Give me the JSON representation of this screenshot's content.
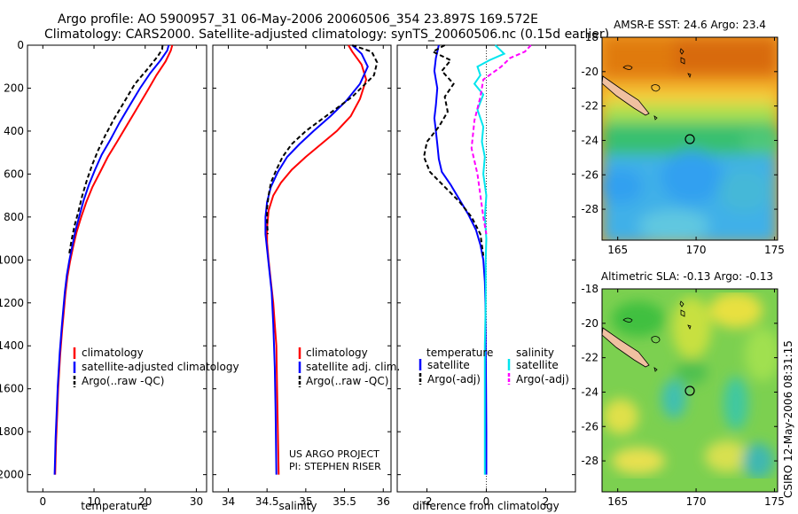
{
  "header": {
    "line1": "Argo profile: AO 5900957_31 06-May-2006 20060506_354 23.897S 169.572E",
    "line2": "Climatology: CARS2000. Satellite-adjusted climatology: synTS_20060506.nc (0.15d earlier)"
  },
  "footer": {
    "project": "US ARGO PROJECT",
    "pi": "PI: STEPHEN RISER",
    "stamp": "CSIRO 12-May-2006 08:31:15"
  },
  "colors": {
    "climatology": "#ff0000",
    "satellite": "#0000ff",
    "argo": "#000000",
    "sal_satellite": "#00e5ee",
    "sal_argo": "#ff00ff"
  },
  "chart_data": [
    {
      "type": "line",
      "name": "temperature-profile",
      "xlabel": "temperature",
      "ylabel": "",
      "xlim": [
        -3,
        32
      ],
      "ylim": [
        0,
        2080
      ],
      "y_reversed": true,
      "xticks": [
        0,
        10,
        20,
        30
      ],
      "yticks": [
        0,
        200,
        400,
        600,
        800,
        1000,
        1200,
        1400,
        1600,
        1800,
        2000
      ],
      "legend": [
        "climatology",
        "satellite-adjusted climatology",
        "Argo(..raw -QC)"
      ],
      "series": [
        {
          "name": "climatology",
          "color": "#ff0000",
          "dash": "",
          "x": [
            25.3,
            25.0,
            24.0,
            22.2,
            20.5,
            18.5,
            16.5,
            14.5,
            12.7,
            11.2,
            9.7,
            8.5,
            7.5,
            6.6,
            5.9,
            5.3,
            4.8,
            4.4,
            4.1,
            3.8,
            3.4,
            3.0,
            2.8,
            2.6,
            2.5,
            2.4
          ],
          "y": [
            0,
            25,
            75,
            140,
            210,
            290,
            370,
            450,
            520,
            590,
            660,
            730,
            800,
            870,
            940,
            1010,
            1080,
            1160,
            1240,
            1320,
            1440,
            1600,
            1720,
            1840,
            1920,
            2000
          ]
        },
        {
          "name": "satellite-adjusted climatology",
          "color": "#0000ff",
          "dash": "",
          "x": [
            24.6,
            24.3,
            23.0,
            21.0,
            19.0,
            17.0,
            15.0,
            13.2,
            11.5,
            10.2,
            9.0,
            8.0,
            7.2,
            6.4,
            5.8,
            5.2,
            4.7,
            4.3,
            4.0,
            3.7,
            3.3,
            2.9,
            2.7,
            2.5,
            2.4,
            2.3
          ],
          "y": [
            0,
            25,
            70,
            130,
            200,
            280,
            360,
            440,
            510,
            580,
            650,
            720,
            790,
            860,
            930,
            1000,
            1070,
            1150,
            1230,
            1310,
            1430,
            1590,
            1710,
            1830,
            1910,
            2000
          ]
        },
        {
          "name": "Argo(..raw -QC)",
          "color": "#000000",
          "dash": "5,3",
          "x": [
            23.4,
            23.3,
            22.5,
            20.5,
            18.0,
            16.0,
            14.0,
            12.2,
            10.8,
            9.6,
            8.6,
            7.7,
            7.0,
            6.2,
            5.6,
            5.1
          ],
          "y": [
            0,
            20,
            50,
            110,
            180,
            260,
            340,
            420,
            490,
            560,
            630,
            700,
            770,
            840,
            910,
            980
          ]
        }
      ]
    },
    {
      "type": "line",
      "name": "salinity-profile",
      "xlabel": "salinity",
      "ylabel": "",
      "xlim": [
        33.8,
        36.1
      ],
      "ylim": [
        0,
        2080
      ],
      "y_reversed": true,
      "xticks": [
        34,
        34.5,
        35,
        35.5,
        36
      ],
      "yticks": [
        0,
        200,
        400,
        600,
        800,
        1000,
        1200,
        1400,
        1600,
        1800,
        2000
      ],
      "legend": [
        "climatology",
        "satellite adj. clim.",
        "Argo(..raw -QC)"
      ],
      "series": [
        {
          "name": "climatology",
          "color": "#ff0000",
          "dash": "",
          "x": [
            35.55,
            35.6,
            35.72,
            35.78,
            35.7,
            35.58,
            35.4,
            35.2,
            35.0,
            34.82,
            34.68,
            34.58,
            34.52,
            34.5,
            34.5,
            34.52,
            34.55,
            34.58,
            34.6,
            34.62,
            34.63,
            34.64,
            34.65
          ],
          "y": [
            0,
            30,
            90,
            160,
            250,
            330,
            400,
            460,
            520,
            580,
            640,
            700,
            770,
            850,
            920,
            1000,
            1100,
            1200,
            1300,
            1400,
            1600,
            1800,
            2000
          ]
        },
        {
          "name": "satellite adj. clim.",
          "color": "#0000ff",
          "dash": "",
          "x": [
            35.6,
            35.72,
            35.8,
            35.7,
            35.52,
            35.32,
            35.1,
            34.92,
            34.76,
            34.64,
            34.55,
            34.5,
            34.48,
            34.48,
            34.5,
            34.53,
            34.56,
            34.58,
            34.6,
            34.61,
            34.62
          ],
          "y": [
            0,
            40,
            100,
            180,
            260,
            330,
            400,
            460,
            520,
            590,
            660,
            730,
            800,
            880,
            950,
            1050,
            1150,
            1300,
            1500,
            1700,
            2000
          ]
        },
        {
          "name": "Argo(..raw -QC)",
          "color": "#000000",
          "dash": "5,3",
          "x": [
            35.6,
            35.85,
            35.92,
            35.88,
            35.6,
            35.3,
            35.0,
            34.82,
            34.7,
            34.62,
            34.55,
            34.52,
            34.5,
            34.5,
            34.51
          ],
          "y": [
            0,
            30,
            80,
            140,
            240,
            320,
            400,
            460,
            520,
            580,
            640,
            700,
            760,
            820,
            880
          ]
        }
      ]
    },
    {
      "type": "line",
      "name": "difference-from-climatology",
      "xlabel": "difference from climatology",
      "ylabel": "",
      "xlim": [
        -3,
        3
      ],
      "ylim": [
        0,
        2080
      ],
      "y_reversed": true,
      "xticks": [
        -2,
        0,
        2
      ],
      "yticks": [
        0,
        200,
        400,
        600,
        800,
        1000,
        1200,
        1400,
        1600,
        1800,
        2000
      ],
      "legend_left_title": "temperature",
      "legend_right_title": "salinity",
      "legend": [
        "satellite",
        "Argo(-adj)",
        "satellite",
        "Argo(-adj)"
      ],
      "zero_line": 0,
      "series": [
        {
          "name": "temperature satellite",
          "color": "#0000ff",
          "dash": "",
          "x": [
            -1.6,
            -1.7,
            -1.75,
            -1.65,
            -1.7,
            -1.75,
            -1.7,
            -1.65,
            -1.6,
            -1.5,
            -1.2,
            -0.9,
            -0.6,
            -0.35,
            -0.2,
            -0.1,
            -0.05,
            -0.03,
            -0.02,
            -0.01,
            0.0,
            0.0,
            0.0
          ],
          "y": [
            0,
            60,
            120,
            200,
            280,
            340,
            400,
            460,
            530,
            590,
            650,
            720,
            790,
            860,
            930,
            1000,
            1100,
            1200,
            1400,
            1600,
            1800,
            1900,
            2000
          ]
        },
        {
          "name": "temperature Argo(-adj)",
          "color": "#000000",
          "dash": "5,3",
          "x": [
            -1.4,
            -1.8,
            -1.2,
            -1.5,
            -1.1,
            -1.4,
            -1.3,
            -1.6,
            -2.0,
            -2.1,
            -1.9,
            -1.4,
            -0.9,
            -0.5,
            -0.2,
            -0.1
          ],
          "y": [
            0,
            30,
            70,
            120,
            180,
            240,
            310,
            380,
            450,
            520,
            590,
            660,
            730,
            800,
            880,
            980
          ]
        },
        {
          "name": "salinity satellite",
          "color": "#00e5ee",
          "dash": "",
          "x": [
            0.3,
            0.6,
            0.1,
            -0.3,
            -0.2,
            -0.4,
            -0.1,
            -0.3,
            -0.1,
            -0.15,
            -0.05,
            -0.1,
            0.0,
            -0.05,
            0.0,
            -0.02,
            -0.02,
            -0.05,
            -0.05,
            -0.05,
            -0.05
          ],
          "y": [
            0,
            40,
            70,
            100,
            140,
            180,
            230,
            300,
            380,
            450,
            520,
            600,
            700,
            800,
            900,
            1000,
            1200,
            1400,
            1600,
            1800,
            2000
          ]
        },
        {
          "name": "salinity Argo(-adj)",
          "color": "#ff00ff",
          "dash": "5,3",
          "x": [
            1.5,
            1.3,
            0.8,
            0.5,
            -0.1,
            -0.2,
            -0.4,
            -0.5,
            -0.3,
            -0.2,
            -0.1,
            0.0
          ],
          "y": [
            0,
            30,
            60,
            100,
            160,
            240,
            350,
            480,
            600,
            700,
            800,
            880
          ]
        }
      ]
    },
    {
      "type": "heatmap",
      "name": "sst-map",
      "title": "AMSR-E SST: 24.6 Argo: 23.4",
      "xlim": [
        164,
        175.2
      ],
      "ylim": [
        -29.8,
        -18
      ],
      "xticks": [
        165,
        170,
        175
      ],
      "yticks": [
        -18,
        -20,
        -22,
        -24,
        -26,
        -28
      ],
      "marker": {
        "lon": 169.572,
        "lat": -23.897
      }
    },
    {
      "type": "heatmap",
      "name": "sla-map",
      "title": "Altimetric SLA: -0.13 Argo: -0.13",
      "xlim": [
        164,
        175.2
      ],
      "ylim": [
        -29.8,
        -18
      ],
      "xticks": [
        165,
        170,
        175
      ],
      "yticks": [
        -18,
        -20,
        -22,
        -24,
        -26,
        -28
      ],
      "marker": {
        "lon": 169.572,
        "lat": -23.897
      }
    }
  ]
}
